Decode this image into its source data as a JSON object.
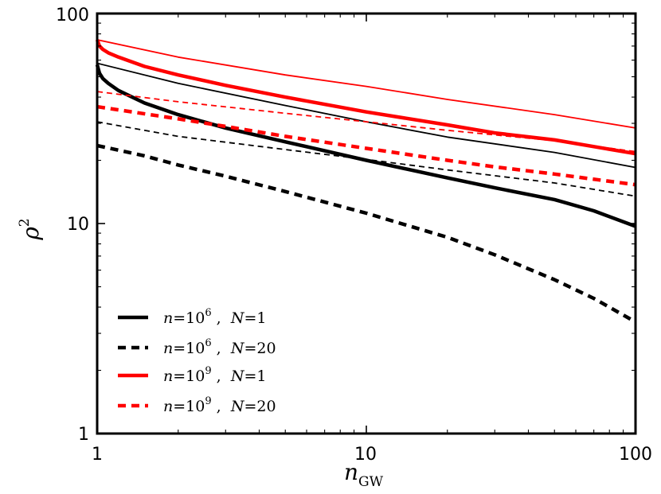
{
  "chart_data": {
    "type": "line",
    "xscale": "log",
    "yscale": "log",
    "xlim": [
      1,
      100
    ],
    "ylim": [
      1,
      100
    ],
    "x_tick_labels": [
      "1",
      "10",
      "100"
    ],
    "y_tick_labels": [
      "1",
      "10",
      "100"
    ],
    "xlabel": {
      "base": "n",
      "subscript": "GW"
    },
    "ylabel": {
      "base": "ρ",
      "superscript": "2"
    },
    "legend_location": "lower-left",
    "series": [
      {
        "id": "n6-N1",
        "label": {
          "n_base": "n",
          "eq": "=",
          "mantissa": "10",
          "exponent": "6",
          "sep": " ,  ",
          "N_label": "N",
          "N_eq": "=",
          "N_value": "1"
        },
        "color": "#000000",
        "style": "solid",
        "weight": "thick",
        "x": [
          1,
          1.02,
          1.05,
          1.1,
          1.2,
          1.5,
          2,
          3,
          5,
          10,
          20,
          30,
          50,
          70,
          100
        ],
        "y": [
          57,
          52,
          49,
          46.5,
          43,
          37.5,
          33,
          28.5,
          24.5,
          20,
          16.5,
          14.8,
          13,
          11.5,
          9.7
        ]
      },
      {
        "id": "n6-N20",
        "label": {
          "n_base": "n",
          "eq": "=",
          "mantissa": "10",
          "exponent": "6",
          "sep": " ,  ",
          "N_label": "N",
          "N_eq": "=",
          "N_value": "20"
        },
        "color": "#000000",
        "style": "dashed",
        "weight": "thick",
        "x": [
          1,
          1.5,
          2,
          3,
          5,
          10,
          20,
          30,
          50,
          70,
          100
        ],
        "y": [
          23.5,
          21,
          19,
          16.8,
          14.2,
          11.2,
          8.6,
          7.1,
          5.4,
          4.4,
          3.4
        ]
      },
      {
        "id": "n9-N1",
        "label": {
          "n_base": "n",
          "eq": "=",
          "mantissa": "10",
          "exponent": "9",
          "sep": " ,  ",
          "N_label": "N",
          "N_eq": "=",
          "N_value": "1"
        },
        "color": "#ff0000",
        "style": "solid",
        "weight": "thick",
        "x": [
          1,
          1.02,
          1.05,
          1.1,
          1.2,
          1.5,
          2,
          3,
          5,
          10,
          20,
          30,
          50,
          100
        ],
        "y": [
          75,
          70,
          67.5,
          65,
          62,
          56,
          51,
          45.5,
          40,
          34,
          29.5,
          27,
          25,
          21.5
        ]
      },
      {
        "id": "n9-N20",
        "label": {
          "n_base": "n",
          "eq": "=",
          "mantissa": "10",
          "exponent": "9",
          "sep": " ,  ",
          "N_label": "N",
          "N_eq": "=",
          "N_value": "20"
        },
        "color": "#ff0000",
        "style": "dashed",
        "weight": "thick",
        "x": [
          1,
          2,
          3,
          5,
          10,
          20,
          30,
          50,
          100
        ],
        "y": [
          36,
          31.5,
          29,
          26,
          22.8,
          20,
          18.6,
          17.2,
          15.3
        ]
      },
      {
        "id": "n6-N1-thin",
        "label": null,
        "color": "#000000",
        "style": "solid",
        "weight": "thin",
        "x": [
          1,
          2,
          5,
          10,
          20,
          50,
          100
        ],
        "y": [
          58,
          46.5,
          36.5,
          30.5,
          25.8,
          21.8,
          18.5
        ]
      },
      {
        "id": "n6-N20-thin",
        "label": null,
        "color": "#000000",
        "style": "dashed",
        "weight": "thin",
        "x": [
          1,
          2,
          5,
          10,
          20,
          50,
          100
        ],
        "y": [
          30.5,
          26,
          22.5,
          20.2,
          18,
          15.6,
          13.5
        ]
      },
      {
        "id": "n9-N1-thin",
        "label": null,
        "color": "#ff0000",
        "style": "solid",
        "weight": "thin",
        "x": [
          1,
          2,
          5,
          10,
          20,
          50,
          100
        ],
        "y": [
          75,
          62,
          51,
          45,
          39,
          33,
          28.5
        ]
      },
      {
        "id": "n9-N20-thin",
        "label": null,
        "color": "#ff0000",
        "style": "dashed",
        "weight": "thin",
        "x": [
          1,
          2,
          5,
          10,
          20,
          50,
          100
        ],
        "y": [
          42.5,
          38,
          33.5,
          30.5,
          27.8,
          24.8,
          22
        ]
      }
    ]
  }
}
